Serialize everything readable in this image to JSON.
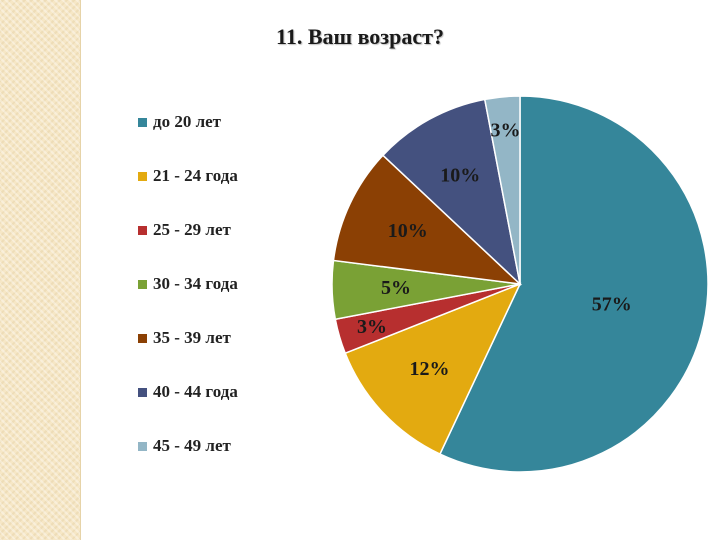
{
  "chart_data": {
    "type": "pie",
    "title": "11. Ваш возраст?",
    "categories": [
      "до 20 лет",
      "21 - 24 года",
      "25 - 29 лет",
      "30 - 34 года",
      "35 - 39 лет",
      "40 - 44 года",
      "45 - 49 лет"
    ],
    "values": [
      57,
      12,
      3,
      5,
      10,
      10,
      3
    ],
    "data_labels": [
      "57%",
      "12%",
      "3%",
      "5%",
      "10%",
      "10%",
      "3%"
    ],
    "colors": [
      "#35869a",
      "#e3aa10",
      "#b72f2f",
      "#7aa135",
      "#8b4004",
      "#44517f",
      "#93b6c6"
    ],
    "legend_position": "left"
  }
}
